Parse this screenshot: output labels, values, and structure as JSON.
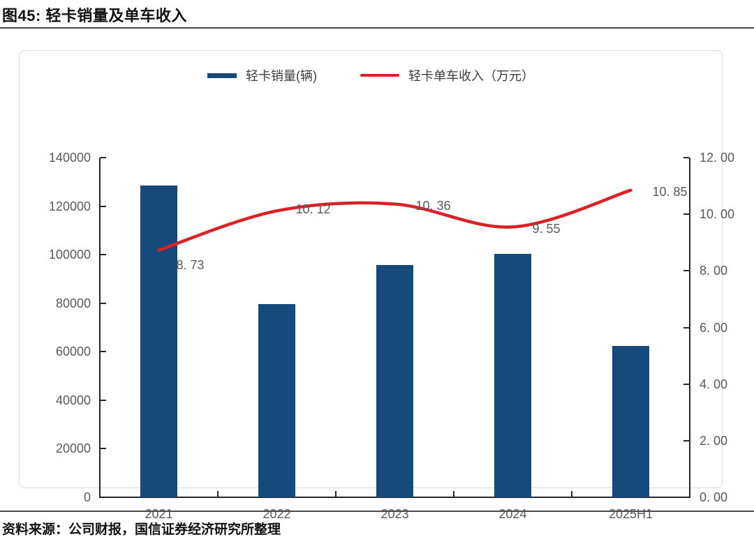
{
  "figure": {
    "title": "图45: 轻卡销量及单车收入",
    "source": "资料来源：公司财报，国信证券经济研究所整理"
  },
  "colors": {
    "bar": "#164a7b",
    "line": "#db2128",
    "axis": "#262626",
    "tick_text": "#595959",
    "card_border": "#dbdbdb"
  },
  "legend": {
    "items": [
      {
        "label": "轻卡销量(辆)"
      },
      {
        "label": "轻卡单车收入（万元）"
      }
    ]
  },
  "chart_data": {
    "type": "bar+line",
    "categories": [
      "2021",
      "2022",
      "2023",
      "2024",
      "2025H1"
    ],
    "series": [
      {
        "name": "轻卡销量(辆)",
        "type": "bar",
        "axis": "left",
        "color": "#164a7b",
        "values": [
          128600,
          79600,
          95800,
          100300,
          62400
        ]
      },
      {
        "name": "轻卡单车收入（万元）",
        "type": "line",
        "axis": "right",
        "color": "#db2128",
        "values": [
          8.73,
          10.12,
          10.36,
          9.55,
          10.85
        ],
        "point_labels": [
          "8. 73",
          "10. 12",
          "10. 36",
          "9. 55",
          "10. 85"
        ]
      }
    ],
    "left_axis": {
      "min": 0,
      "max": 140000,
      "step": 20000,
      "tick_labels": [
        "0",
        "20000",
        "40000",
        "60000",
        "80000",
        "100000",
        "120000",
        "140000"
      ]
    },
    "right_axis": {
      "min": 0,
      "max": 12,
      "step": 2,
      "tick_labels": [
        "0. 00",
        "2. 00",
        "4. 00",
        "6. 00",
        "8. 00",
        "10. 00",
        "12. 00"
      ]
    },
    "grid": false,
    "legend_position": "top-center",
    "title": "图45: 轻卡销量及单车收入",
    "xlabel": "",
    "ylabel_left": "轻卡销量(辆)",
    "ylabel_right": "轻卡单车收入（万元）"
  }
}
